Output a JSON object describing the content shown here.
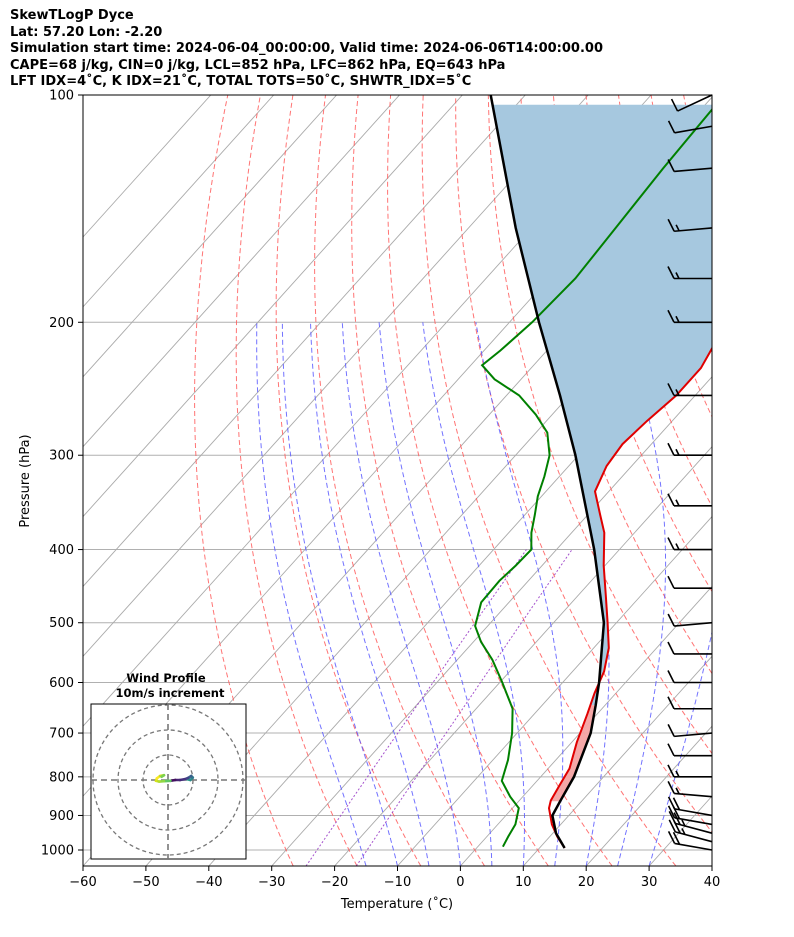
{
  "header": {
    "line1": "SkewTLogP Dyce",
    "line2": "Lat: 57.20   Lon: -2.20",
    "line3": "Simulation start time: 2024-06-04_00:00:00, Valid time: 2024-06-06T14:00:00.00",
    "line4": "CAPE=68 j/kg, CIN=0 j/kg, LCL=852 hPa, LFC=862 hPa, EQ=643 hPa",
    "line5": "LFT IDX=4˚C, K IDX=21˚C, TOTAL TOTS=50˚C, SHWTR_IDX=5˚C"
  },
  "inset": {
    "title_line1": "Wind Profile",
    "title_line2": "10m/s increment"
  },
  "chart_data": {
    "type": "skewt-logp",
    "xlabel": "Temperature (˚C)",
    "ylabel": "Pressure (hPa)",
    "xlim": [
      -60,
      40
    ],
    "ylim": [
      1050,
      100
    ],
    "x_ticks": [
      -60,
      -50,
      -40,
      -30,
      -20,
      -10,
      0,
      10,
      20,
      30,
      40
    ],
    "x_tick_labels": [
      "−60",
      "−50",
      "−40",
      "−30",
      "−20",
      "−10",
      "0",
      "10",
      "20",
      "30",
      "40"
    ],
    "y_ticks": [
      1000,
      900,
      800,
      700,
      600,
      500,
      400,
      300,
      200,
      100
    ],
    "y_tick_labels": [
      "1000",
      "900",
      "800",
      "700",
      "600",
      "500",
      "400",
      "300",
      "200",
      "100"
    ],
    "grid": true,
    "colors": {
      "temperature": "#e00000",
      "dewpoint": "#008000",
      "parcel": "#000000",
      "cape": "#a6c8df",
      "cin": "#f4a3a3",
      "isotherm": "#aaaaaa",
      "dry_adiabat": "#ff5c5c",
      "moist_adiabat": "#5a5aff",
      "mixing_ratio": "#9b40c8"
    },
    "temperature": [
      {
        "p": 994,
        "t": 14.0
      },
      {
        "p": 960,
        "t": 11.2
      },
      {
        "p": 925,
        "t": 8.6
      },
      {
        "p": 880,
        "t": 5.8
      },
      {
        "p": 860,
        "t": 5.0
      },
      {
        "p": 820,
        "t": 4.2
      },
      {
        "p": 780,
        "t": 3.4
      },
      {
        "p": 720,
        "t": 0.8
      },
      {
        "p": 660,
        "t": -1.6
      },
      {
        "p": 620,
        "t": -3.4
      },
      {
        "p": 580,
        "t": -5.0
      },
      {
        "p": 540,
        "t": -7.6
      },
      {
        "p": 500,
        "t": -11.4
      },
      {
        "p": 460,
        "t": -15.6
      },
      {
        "p": 420,
        "t": -20.2
      },
      {
        "p": 380,
        "t": -24.8
      },
      {
        "p": 360,
        "t": -28.0
      },
      {
        "p": 335,
        "t": -32.2
      },
      {
        "p": 310,
        "t": -34.0
      },
      {
        "p": 290,
        "t": -34.6
      },
      {
        "p": 270,
        "t": -34.0
      },
      {
        "p": 250,
        "t": -33.0
      },
      {
        "p": 230,
        "t": -33.0
      },
      {
        "p": 210,
        "t": -34.6
      },
      {
        "p": 190,
        "t": -37.4
      },
      {
        "p": 175,
        "t": -37.4
      },
      {
        "p": 165,
        "t": -35.6
      },
      {
        "p": 155,
        "t": -34.4
      },
      {
        "p": 145,
        "t": -36.0
      },
      {
        "p": 135,
        "t": -37.0
      },
      {
        "p": 125,
        "t": -36.6
      },
      {
        "p": 115,
        "t": -37.2
      },
      {
        "p": 108,
        "t": -38.4
      },
      {
        "p": 100,
        "t": -39.6
      }
    ],
    "dewpoint": [
      {
        "p": 990,
        "td": 4.0
      },
      {
        "p": 960,
        "td": 3.4
      },
      {
        "p": 925,
        "td": 2.8
      },
      {
        "p": 880,
        "td": 1.0
      },
      {
        "p": 850,
        "td": -2.0
      },
      {
        "p": 810,
        "td": -5.6
      },
      {
        "p": 760,
        "td": -7.6
      },
      {
        "p": 700,
        "td": -10.8
      },
      {
        "p": 650,
        "td": -14.2
      },
      {
        "p": 600,
        "td": -19.6
      },
      {
        "p": 560,
        "td": -24.4
      },
      {
        "p": 530,
        "td": -28.8
      },
      {
        "p": 505,
        "td": -32.0
      },
      {
        "p": 470,
        "td": -34.4
      },
      {
        "p": 440,
        "td": -34.6
      },
      {
        "p": 420,
        "td": -34.2
      },
      {
        "p": 400,
        "td": -34.0
      },
      {
        "p": 380,
        "td": -36.4
      },
      {
        "p": 360,
        "td": -38.4
      },
      {
        "p": 340,
        "td": -40.6
      },
      {
        "p": 320,
        "td": -42.4
      },
      {
        "p": 300,
        "td": -44.6
      },
      {
        "p": 280,
        "td": -48.2
      },
      {
        "p": 265,
        "td": -52.6
      },
      {
        "p": 250,
        "td": -58.0
      },
      {
        "p": 238,
        "td": -64.2
      },
      {
        "p": 228,
        "td": -68.2
      },
      {
        "p": 218,
        "td": -67.4
      },
      {
        "p": 200,
        "td": -66.4
      },
      {
        "p": 175,
        "td": -65.8
      },
      {
        "p": 150,
        "td": -66.6
      },
      {
        "p": 125,
        "td": -67.6
      },
      {
        "p": 100,
        "td": -68.4
      }
    ],
    "parcel": [
      {
        "p": 994,
        "t": 14.0
      },
      {
        "p": 950,
        "t": 10.5
      },
      {
        "p": 900,
        "t": 7.4
      },
      {
        "p": 862,
        "t": 6.6
      },
      {
        "p": 800,
        "t": 5.3
      },
      {
        "p": 700,
        "t": 1.7
      },
      {
        "p": 643,
        "t": -1.5
      },
      {
        "p": 600,
        "t": -4.2
      },
      {
        "p": 500,
        "t": -12.0
      },
      {
        "p": 400,
        "t": -24.0
      },
      {
        "p": 300,
        "t": -40.5
      },
      {
        "p": 250,
        "t": -51.5
      },
      {
        "p": 200,
        "t": -65.3
      },
      {
        "p": 150,
        "t": -82.5
      },
      {
        "p": 100,
        "t": -105.5
      }
    ],
    "wind_barbs": [
      {
        "p": 1000,
        "speed_kt": 20,
        "dir_deg": 260
      },
      {
        "p": 975,
        "speed_kt": 25,
        "dir_deg": 255
      },
      {
        "p": 950,
        "speed_kt": 25,
        "dir_deg": 255
      },
      {
        "p": 925,
        "speed_kt": 20,
        "dir_deg": 260
      },
      {
        "p": 900,
        "speed_kt": 20,
        "dir_deg": 260
      },
      {
        "p": 850,
        "speed_kt": 15,
        "dir_deg": 265
      },
      {
        "p": 800,
        "speed_kt": 15,
        "dir_deg": 270
      },
      {
        "p": 750,
        "speed_kt": 10,
        "dir_deg": 270
      },
      {
        "p": 700,
        "speed_kt": 10,
        "dir_deg": 275
      },
      {
        "p": 650,
        "speed_kt": 10,
        "dir_deg": 270
      },
      {
        "p": 600,
        "speed_kt": 10,
        "dir_deg": 270
      },
      {
        "p": 550,
        "speed_kt": 10,
        "dir_deg": 270
      },
      {
        "p": 500,
        "speed_kt": 10,
        "dir_deg": 275
      },
      {
        "p": 450,
        "speed_kt": 10,
        "dir_deg": 270
      },
      {
        "p": 400,
        "speed_kt": 15,
        "dir_deg": 270
      },
      {
        "p": 350,
        "speed_kt": 15,
        "dir_deg": 270
      },
      {
        "p": 300,
        "speed_kt": 15,
        "dir_deg": 270
      },
      {
        "p": 250,
        "speed_kt": 15,
        "dir_deg": 270
      },
      {
        "p": 200,
        "speed_kt": 15,
        "dir_deg": 270
      },
      {
        "p": 175,
        "speed_kt": 15,
        "dir_deg": 270
      },
      {
        "p": 150,
        "speed_kt": 15,
        "dir_deg": 275
      },
      {
        "p": 125,
        "speed_kt": 10,
        "dir_deg": 275
      },
      {
        "p": 110,
        "speed_kt": 10,
        "dir_deg": 280
      },
      {
        "p": 100,
        "speed_kt": 10,
        "dir_deg": 295
      }
    ],
    "hodograph": {
      "rings": [
        10,
        20,
        30
      ],
      "points": [
        {
          "u": 4.8,
          "v": 0.2
        },
        {
          "u": 5.6,
          "v": 0.0
        },
        {
          "u": 6.2,
          "v": 0.6
        },
        {
          "u": 5.8,
          "v": 1.0
        },
        {
          "u": 5.0,
          "v": 0.5
        },
        {
          "u": 4.2,
          "v": 0.2
        },
        {
          "u": 3.0,
          "v": 0.0
        },
        {
          "u": 1.8,
          "v": 0.0
        },
        {
          "u": 0.6,
          "v": -0.2
        },
        {
          "u": -1.0,
          "v": -0.3
        },
        {
          "u": -2.2,
          "v": -0.4
        },
        {
          "u": -3.0,
          "v": -0.2
        },
        {
          "u": -2.8,
          "v": 0.4
        },
        {
          "u": -2.0,
          "v": 1.0
        },
        {
          "u": -1.0,
          "v": 1.2
        },
        {
          "u": -1.6,
          "v": 0.8
        }
      ]
    }
  }
}
